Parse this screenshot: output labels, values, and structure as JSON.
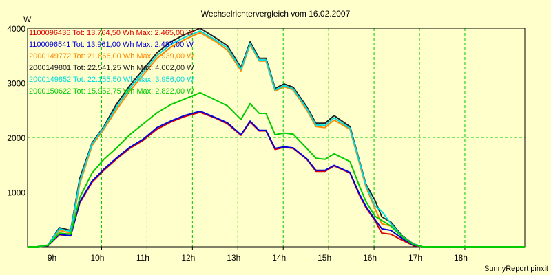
{
  "chart_data": {
    "type": "line",
    "title": "Wechselrichtervergleich vom 16.02.2007",
    "ylabel": "W",
    "xlabel": "",
    "footer": "SunnyReport pinxit",
    "ylim": [
      0,
      4000
    ],
    "y_ticks": [
      1000,
      2000,
      3000,
      4000
    ],
    "x_range": [
      8.0,
      18.95
    ],
    "x_ticks": [
      {
        "value": 8.63,
        "label": "9h"
      },
      {
        "value": 9.63,
        "label": "10h"
      },
      {
        "value": 10.63,
        "label": "11h"
      },
      {
        "value": 11.63,
        "label": "12h"
      },
      {
        "value": 12.63,
        "label": "13h"
      },
      {
        "value": 13.63,
        "label": "14h"
      },
      {
        "value": 14.63,
        "label": "15h"
      },
      {
        "value": 15.63,
        "label": "16h"
      },
      {
        "value": 16.63,
        "label": "17h"
      },
      {
        "value": 17.63,
        "label": "18h"
      }
    ],
    "grid": true,
    "legend_position": "top-left",
    "x": [
      8.0,
      8.2,
      8.45,
      8.7,
      8.95,
      9.15,
      9.42,
      9.68,
      9.95,
      10.25,
      10.55,
      10.85,
      11.15,
      11.45,
      11.8,
      12.15,
      12.4,
      12.7,
      12.9,
      13.1,
      13.25,
      13.45,
      13.65,
      13.85,
      14.15,
      14.35,
      14.55,
      14.75,
      15.1,
      15.3,
      15.45,
      15.65,
      15.8,
      16.0,
      16.25,
      16.5,
      16.7,
      16.9,
      17.1,
      17.3,
      17.55,
      17.8,
      18.1,
      18.4,
      18.6,
      18.95
    ],
    "series": [
      {
        "name": "1100096436 Tot: 13.764,50 Wh Max: 2.465,00 W",
        "color": "#dd0000",
        "values": [
          0,
          0,
          20,
          220,
          200,
          800,
          1180,
          1400,
          1600,
          1800,
          1950,
          2150,
          2280,
          2380,
          2460,
          2350,
          2250,
          2040,
          2280,
          2120,
          2120,
          1780,
          1820,
          1800,
          1600,
          1380,
          1380,
          1480,
          1350,
          960,
          720,
          480,
          250,
          230,
          120,
          20,
          0,
          0,
          0,
          0,
          0,
          0,
          0,
          0,
          0,
          0
        ]
      },
      {
        "name": "1100096541 Tot: 13.961,00 Wh Max: 2.487,00 W",
        "color": "#0000dd",
        "values": [
          0,
          0,
          20,
          230,
          200,
          820,
          1200,
          1420,
          1620,
          1820,
          1970,
          2180,
          2300,
          2400,
          2480,
          2360,
          2270,
          2050,
          2300,
          2130,
          2130,
          1800,
          1830,
          1810,
          1610,
          1400,
          1400,
          1490,
          1360,
          980,
          740,
          500,
          330,
          300,
          150,
          30,
          0,
          0,
          0,
          0,
          0,
          0,
          0,
          0,
          0,
          0
        ]
      },
      {
        "name": "2000149772 Tot: 21.866,00 Wh Max: 3.939,00 W",
        "color": "#ff8800",
        "values": [
          0,
          0,
          30,
          300,
          250,
          1150,
          1850,
          2150,
          2500,
          2850,
          3150,
          3450,
          3650,
          3790,
          3920,
          3750,
          3600,
          3220,
          3700,
          3400,
          3400,
          2850,
          2930,
          2870,
          2500,
          2200,
          2180,
          2320,
          2150,
          1550,
          1100,
          700,
          420,
          380,
          180,
          40,
          0,
          0,
          0,
          0,
          0,
          0,
          0,
          0,
          0,
          0
        ]
      },
      {
        "name": "2000149801 Tot: 22.541,25 Wh Max: 4.002,00 W",
        "color": "#202020",
        "values": [
          0,
          0,
          30,
          350,
          300,
          1250,
          1900,
          2200,
          2600,
          2950,
          3250,
          3550,
          3750,
          3880,
          4000,
          3820,
          3680,
          3280,
          3750,
          3450,
          3450,
          2900,
          2980,
          2920,
          2560,
          2260,
          2260,
          2400,
          2200,
          1600,
          1150,
          850,
          550,
          450,
          200,
          50,
          0,
          0,
          0,
          0,
          0,
          0,
          0,
          0,
          0,
          0
        ]
      },
      {
        "name": "2000149852 Tot: 22.155,50 Wh Max: 3.956,00 W",
        "color": "#00dddd",
        "values": [
          0,
          0,
          30,
          330,
          280,
          1200,
          1880,
          2180,
          2550,
          2900,
          3200,
          3500,
          3700,
          3830,
          3950,
          3780,
          3640,
          3250,
          3720,
          3420,
          3420,
          2870,
          2950,
          2890,
          2530,
          2230,
          2220,
          2360,
          2170,
          1580,
          1130,
          750,
          650,
          420,
          190,
          45,
          0,
          0,
          0,
          0,
          0,
          0,
          0,
          0,
          0,
          0
        ]
      },
      {
        "name": "2000150622 Tot: 15.952,75 Wh Max: 2.822,00 W",
        "color": "#00cc00",
        "values": [
          0,
          0,
          25,
          250,
          230,
          900,
          1350,
          1600,
          1800,
          2050,
          2250,
          2450,
          2600,
          2700,
          2820,
          2680,
          2580,
          2330,
          2620,
          2440,
          2440,
          2050,
          2080,
          2060,
          1800,
          1620,
          1600,
          1700,
          1560,
          1130,
          830,
          560,
          480,
          380,
          180,
          40,
          0,
          0,
          0,
          0,
          0,
          0,
          0,
          0,
          0,
          0
        ]
      }
    ]
  }
}
